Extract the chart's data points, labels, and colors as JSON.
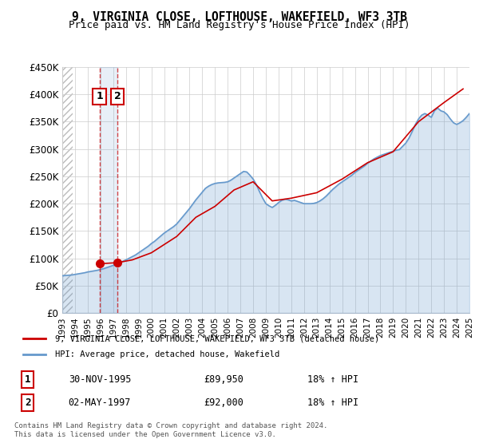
{
  "title": "9, VIRGINIA CLOSE, LOFTHOUSE, WAKEFIELD, WF3 3TB",
  "subtitle": "Price paid vs. HM Land Registry's House Price Index (HPI)",
  "legend_line1": "9, VIRGINIA CLOSE, LOFTHOUSE, WAKEFIELD, WF3 3TB (detached house)",
  "legend_line2": "HPI: Average price, detached house, Wakefield",
  "footer": "Contains HM Land Registry data © Crown copyright and database right 2024.\nThis data is licensed under the Open Government Licence v3.0.",
  "transactions": [
    {
      "label": "1",
      "date": "30-NOV-1995",
      "price": "£89,950",
      "hpi": "18% ↑ HPI",
      "x_year": 1995.92
    },
    {
      "label": "2",
      "date": "02-MAY-1997",
      "price": "£92,000",
      "hpi": "18% ↑ HPI",
      "x_year": 1997.34
    }
  ],
  "ylim": [
    0,
    450000
  ],
  "xlim_start": 1993,
  "xlim_end": 2025,
  "yticks": [
    0,
    50000,
    100000,
    150000,
    200000,
    250000,
    300000,
    350000,
    400000,
    450000
  ],
  "ytick_labels": [
    "£0",
    "£50K",
    "£100K",
    "£150K",
    "£200K",
    "£250K",
    "£300K",
    "£350K",
    "£400K",
    "£450K"
  ],
  "xticks": [
    1993,
    1994,
    1995,
    1996,
    1997,
    1998,
    1999,
    2000,
    2001,
    2002,
    2003,
    2004,
    2005,
    2006,
    2007,
    2008,
    2009,
    2010,
    2011,
    2012,
    2013,
    2014,
    2015,
    2016,
    2017,
    2018,
    2019,
    2020,
    2021,
    2022,
    2023,
    2024,
    2025
  ],
  "hpi_color": "#6699cc",
  "price_color": "#cc0000",
  "sale1_x": 1995.92,
  "sale1_y": 89950,
  "sale2_x": 1997.34,
  "sale2_y": 92000,
  "hatch_end": 1993.5,
  "background_color": "#ffffff",
  "grid_color": "#cccccc",
  "hpi_data_x": [
    1993.0,
    1993.25,
    1993.5,
    1993.75,
    1994.0,
    1994.25,
    1994.5,
    1994.75,
    1995.0,
    1995.25,
    1995.5,
    1995.75,
    1996.0,
    1996.25,
    1996.5,
    1996.75,
    1997.0,
    1997.25,
    1997.5,
    1997.75,
    1998.0,
    1998.25,
    1998.5,
    1998.75,
    1999.0,
    1999.25,
    1999.5,
    1999.75,
    2000.0,
    2000.25,
    2000.5,
    2000.75,
    2001.0,
    2001.25,
    2001.5,
    2001.75,
    2002.0,
    2002.25,
    2002.5,
    2002.75,
    2003.0,
    2003.25,
    2003.5,
    2003.75,
    2004.0,
    2004.25,
    2004.5,
    2004.75,
    2005.0,
    2005.25,
    2005.5,
    2005.75,
    2006.0,
    2006.25,
    2006.5,
    2006.75,
    2007.0,
    2007.25,
    2007.5,
    2007.75,
    2008.0,
    2008.25,
    2008.5,
    2008.75,
    2009.0,
    2009.25,
    2009.5,
    2009.75,
    2010.0,
    2010.25,
    2010.5,
    2010.75,
    2011.0,
    2011.25,
    2011.5,
    2011.75,
    2012.0,
    2012.25,
    2012.5,
    2012.75,
    2013.0,
    2013.25,
    2013.5,
    2013.75,
    2014.0,
    2014.25,
    2014.5,
    2014.75,
    2015.0,
    2015.25,
    2015.5,
    2015.75,
    2016.0,
    2016.25,
    2016.5,
    2016.75,
    2017.0,
    2017.25,
    2017.5,
    2017.75,
    2018.0,
    2018.25,
    2018.5,
    2018.75,
    2019.0,
    2019.25,
    2019.5,
    2019.75,
    2020.0,
    2020.25,
    2020.5,
    2020.75,
    2021.0,
    2021.25,
    2021.5,
    2021.75,
    2022.0,
    2022.25,
    2022.5,
    2022.75,
    2023.0,
    2023.25,
    2023.5,
    2023.75,
    2024.0,
    2024.25,
    2024.5,
    2024.75,
    2025.0
  ],
  "hpi_data_y": [
    68000,
    68500,
    69000,
    69500,
    70500,
    71500,
    72500,
    73500,
    75000,
    76000,
    77000,
    78000,
    79500,
    81000,
    83000,
    85000,
    87000,
    89500,
    92000,
    94500,
    97000,
    100000,
    103000,
    106000,
    110000,
    114000,
    118000,
    122000,
    127000,
    131000,
    136000,
    141000,
    146000,
    150000,
    154000,
    158000,
    163000,
    170000,
    177000,
    184000,
    191000,
    199000,
    207000,
    214000,
    221000,
    228000,
    232000,
    235000,
    237000,
    238000,
    238500,
    239000,
    240000,
    243000,
    247000,
    251000,
    255000,
    259000,
    258000,
    252000,
    245000,
    235000,
    222000,
    210000,
    200000,
    196000,
    193000,
    197000,
    202000,
    206000,
    208000,
    207000,
    205000,
    206000,
    204000,
    202000,
    200000,
    200000,
    200000,
    200500,
    202000,
    205000,
    209000,
    214000,
    220000,
    226000,
    231000,
    236000,
    240000,
    244000,
    248000,
    252000,
    257000,
    261000,
    265000,
    269000,
    274000,
    278000,
    282000,
    285000,
    288000,
    290000,
    292000,
    294000,
    296000,
    298000,
    299000,
    305000,
    311000,
    320000,
    332000,
    345000,
    355000,
    362000,
    365000,
    362000,
    358000,
    370000,
    375000,
    370000,
    368000,
    363000,
    355000,
    348000,
    345000,
    348000,
    352000,
    358000,
    365000
  ],
  "price_data_x": [
    1995.92,
    1997.34,
    1998.5,
    2000.0,
    2002.0,
    2003.5,
    2005.0,
    2006.5,
    2008.0,
    2009.5,
    2011.0,
    2013.0,
    2015.0,
    2017.0,
    2019.0,
    2021.0,
    2023.0,
    2024.5
  ],
  "price_data_y": [
    89950,
    92000,
    97000,
    110000,
    140000,
    175000,
    195000,
    225000,
    240000,
    205000,
    210000,
    220000,
    245000,
    275000,
    295000,
    350000,
    385000,
    410000
  ]
}
